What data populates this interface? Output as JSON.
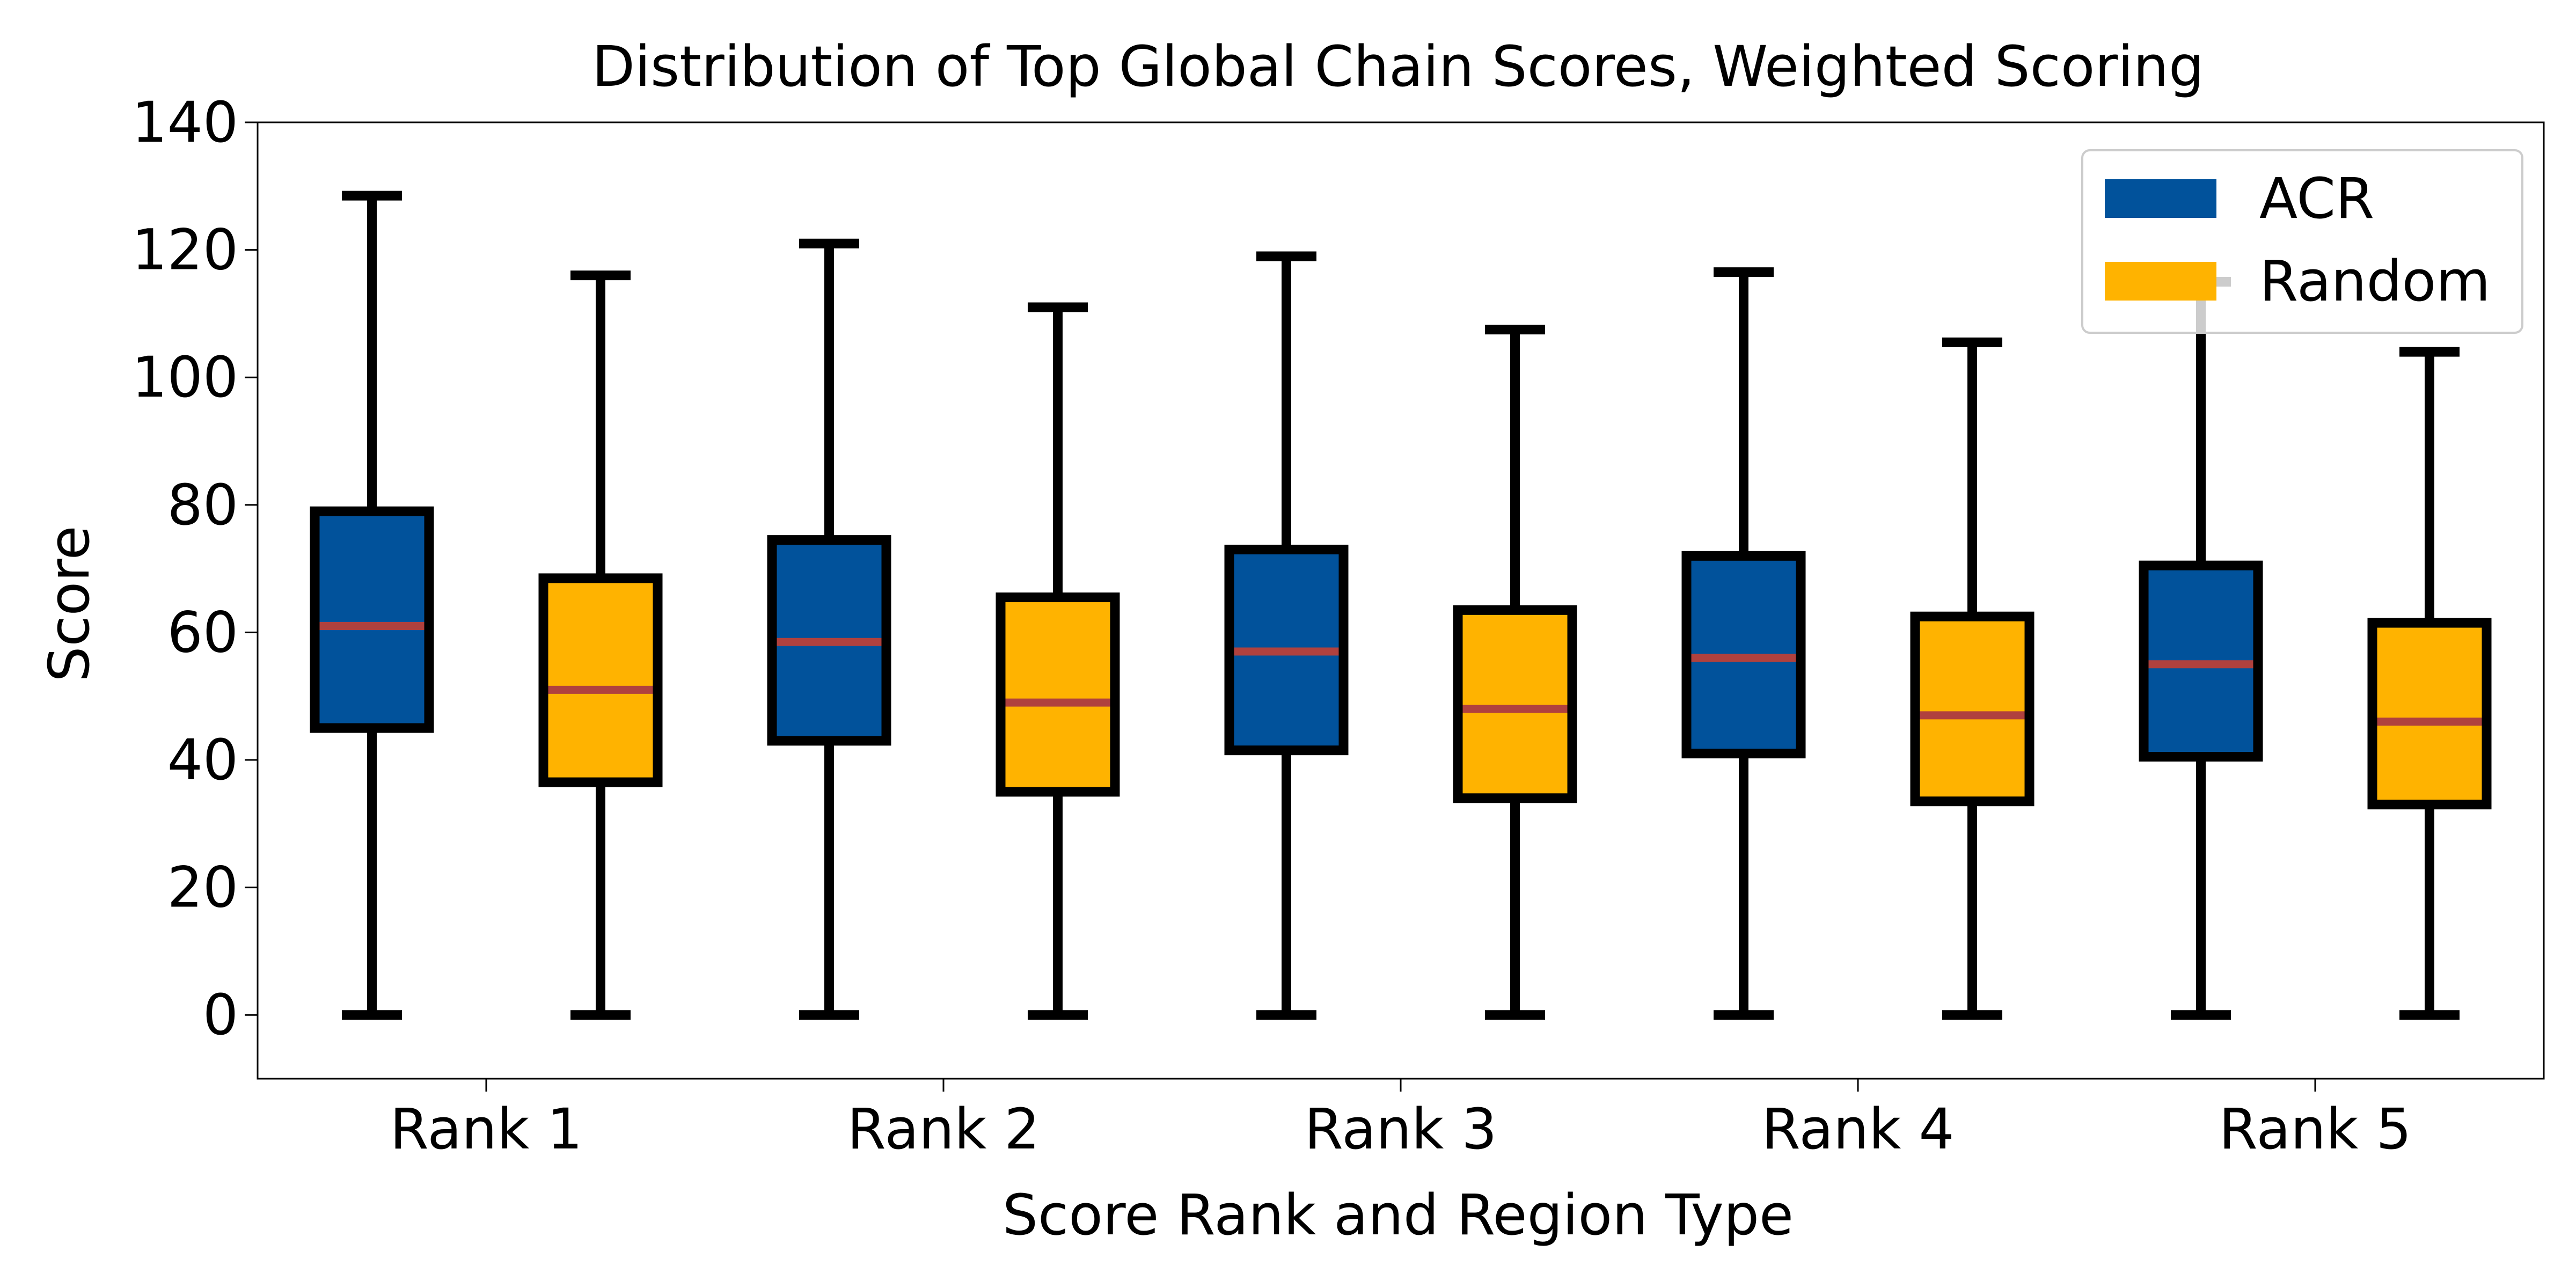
{
  "chart_data": {
    "type": "box",
    "title": "Distribution of Top Global Chain Scores, Weighted Scoring",
    "xlabel": "Score Rank and Region Type",
    "ylabel": "Score",
    "ylim": [
      -10,
      140
    ],
    "yticks": [
      0,
      20,
      40,
      60,
      80,
      100,
      120,
      140
    ],
    "categories": [
      "Rank 1",
      "Rank 2",
      "Rank 3",
      "Rank 4",
      "Rank 5"
    ],
    "grid": false,
    "legend_position": "top-right",
    "series": [
      {
        "name": "ACR",
        "color": "#01529b",
        "boxes": [
          {
            "min": 0,
            "q1": 45,
            "median": 61,
            "q3": 79,
            "max": 128.5
          },
          {
            "min": 0,
            "q1": 43,
            "median": 58.5,
            "q3": 74.5,
            "max": 121
          },
          {
            "min": 0,
            "q1": 41.5,
            "median": 57,
            "q3": 73,
            "max": 119
          },
          {
            "min": 0,
            "q1": 41,
            "median": 56,
            "q3": 72,
            "max": 116.5
          },
          {
            "min": 0,
            "q1": 40.5,
            "median": 55,
            "q3": 70.5,
            "max": 115
          }
        ]
      },
      {
        "name": "Random",
        "color": "#ffb300",
        "boxes": [
          {
            "min": 0,
            "q1": 36.5,
            "median": 51,
            "q3": 68.5,
            "max": 116
          },
          {
            "min": 0,
            "q1": 35,
            "median": 49,
            "q3": 65.5,
            "max": 111
          },
          {
            "min": 0,
            "q1": 34,
            "median": 48,
            "q3": 63.5,
            "max": 107.5
          },
          {
            "min": 0,
            "q1": 33.5,
            "median": 47,
            "q3": 62.5,
            "max": 105.5
          },
          {
            "min": 0,
            "q1": 33,
            "median": 46,
            "q3": 61.5,
            "max": 104
          }
        ]
      }
    ],
    "median_color": "#b0413e",
    "edge_color": "#000000"
  }
}
